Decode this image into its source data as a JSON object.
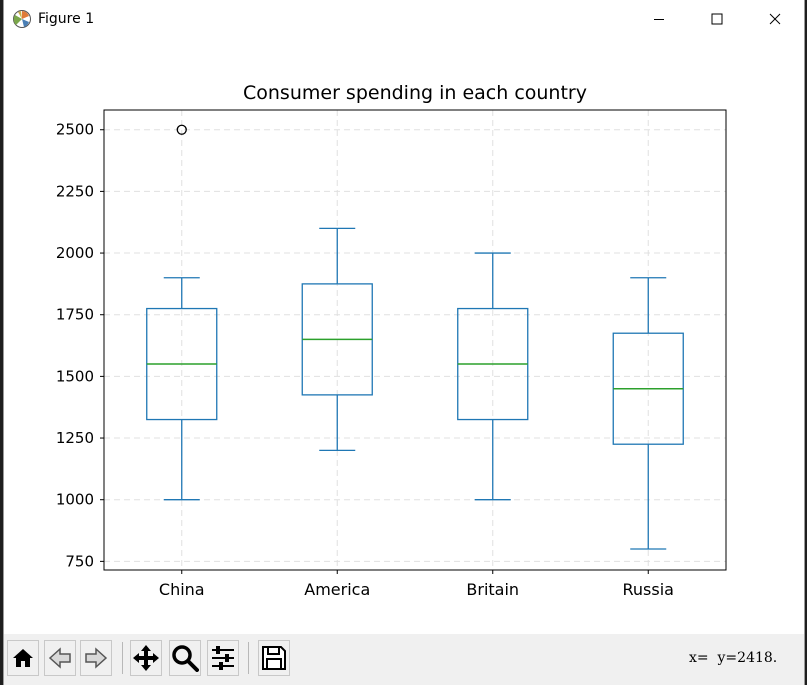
{
  "window": {
    "title": "Figure 1",
    "buttons": {
      "minimize": "minimize",
      "maximize": "maximize",
      "close": "close"
    }
  },
  "toolbar": {
    "items": [
      {
        "name": "home",
        "icon": "home-icon"
      },
      {
        "name": "back",
        "icon": "arrow-left-icon"
      },
      {
        "name": "forward",
        "icon": "arrow-right-icon"
      },
      {
        "name": "pan",
        "icon": "move-icon"
      },
      {
        "name": "zoom",
        "icon": "magnifier-icon"
      },
      {
        "name": "configure-subplots",
        "icon": "sliders-icon"
      },
      {
        "name": "save",
        "icon": "floppy-disk-icon"
      }
    ],
    "coordinate_readout": "x=  y=2418."
  },
  "colors": {
    "box": "#1f77b4",
    "median": "#2ca02c",
    "grid": "#e0e0e0",
    "axis": "#000000"
  },
  "chart_data": {
    "type": "box",
    "title": "Consumer spending in each country",
    "xlabel": "",
    "ylabel": "",
    "categories": [
      "China",
      "America",
      "Britain",
      "Russia"
    ],
    "boxes": [
      {
        "name": "China",
        "whisker_low": 1000,
        "q1": 1325,
        "median": 1550,
        "q3": 1775,
        "whisker_high": 1900,
        "outliers": [
          2500
        ]
      },
      {
        "name": "America",
        "whisker_low": 1200,
        "q1": 1425,
        "median": 1650,
        "q3": 1875,
        "whisker_high": 2100,
        "outliers": []
      },
      {
        "name": "Britain",
        "whisker_low": 1000,
        "q1": 1325,
        "median": 1550,
        "q3": 1775,
        "whisker_high": 2000,
        "outliers": []
      },
      {
        "name": "Russia",
        "whisker_low": 800,
        "q1": 1225,
        "median": 1450,
        "q3": 1675,
        "whisker_high": 1900,
        "outliers": []
      }
    ],
    "yticks": [
      750,
      1000,
      1250,
      1500,
      1750,
      2000,
      2250,
      2500
    ],
    "ylim": [
      715,
      2580
    ],
    "grid": true,
    "grid_style": "dashed"
  }
}
